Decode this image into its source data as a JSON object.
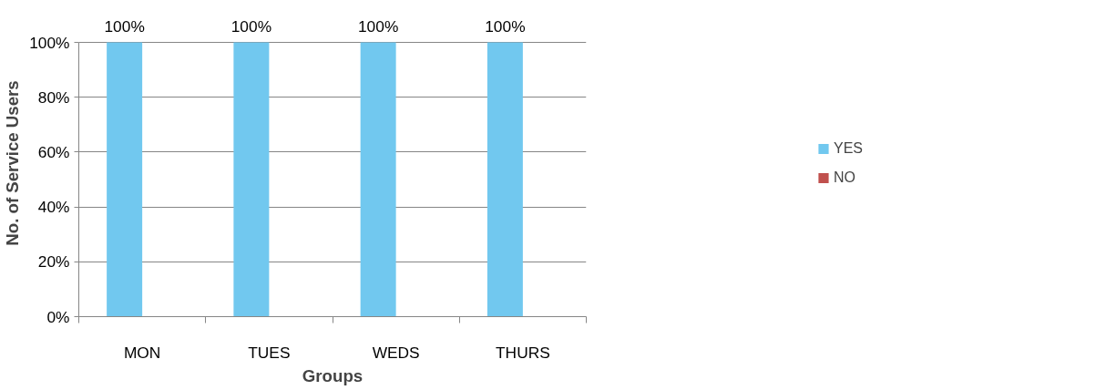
{
  "chart_data": {
    "type": "bar",
    "xlabel": "Groups",
    "ylabel": "No. of Service Users",
    "categories": [
      "MON",
      "TUES",
      "WEDS",
      "THURS"
    ],
    "series": [
      {
        "name": "YES",
        "color": "#71c8ef",
        "values": [
          100,
          100,
          100,
          100
        ],
        "value_labels": [
          "100%",
          "100%",
          "100%",
          "100%"
        ]
      },
      {
        "name": "NO",
        "color": "#c0504d",
        "values": [
          0,
          0,
          0,
          0
        ]
      }
    ],
    "ylim": [
      0,
      100
    ],
    "yticks": [
      {
        "value": 0,
        "label": "0%"
      },
      {
        "value": 20,
        "label": "20%"
      },
      {
        "value": 40,
        "label": "40%"
      },
      {
        "value": 60,
        "label": "60%"
      },
      {
        "value": 80,
        "label": "80%"
      },
      {
        "value": 100,
        "label": "100%"
      }
    ],
    "grid": "y",
    "legend": "right"
  }
}
